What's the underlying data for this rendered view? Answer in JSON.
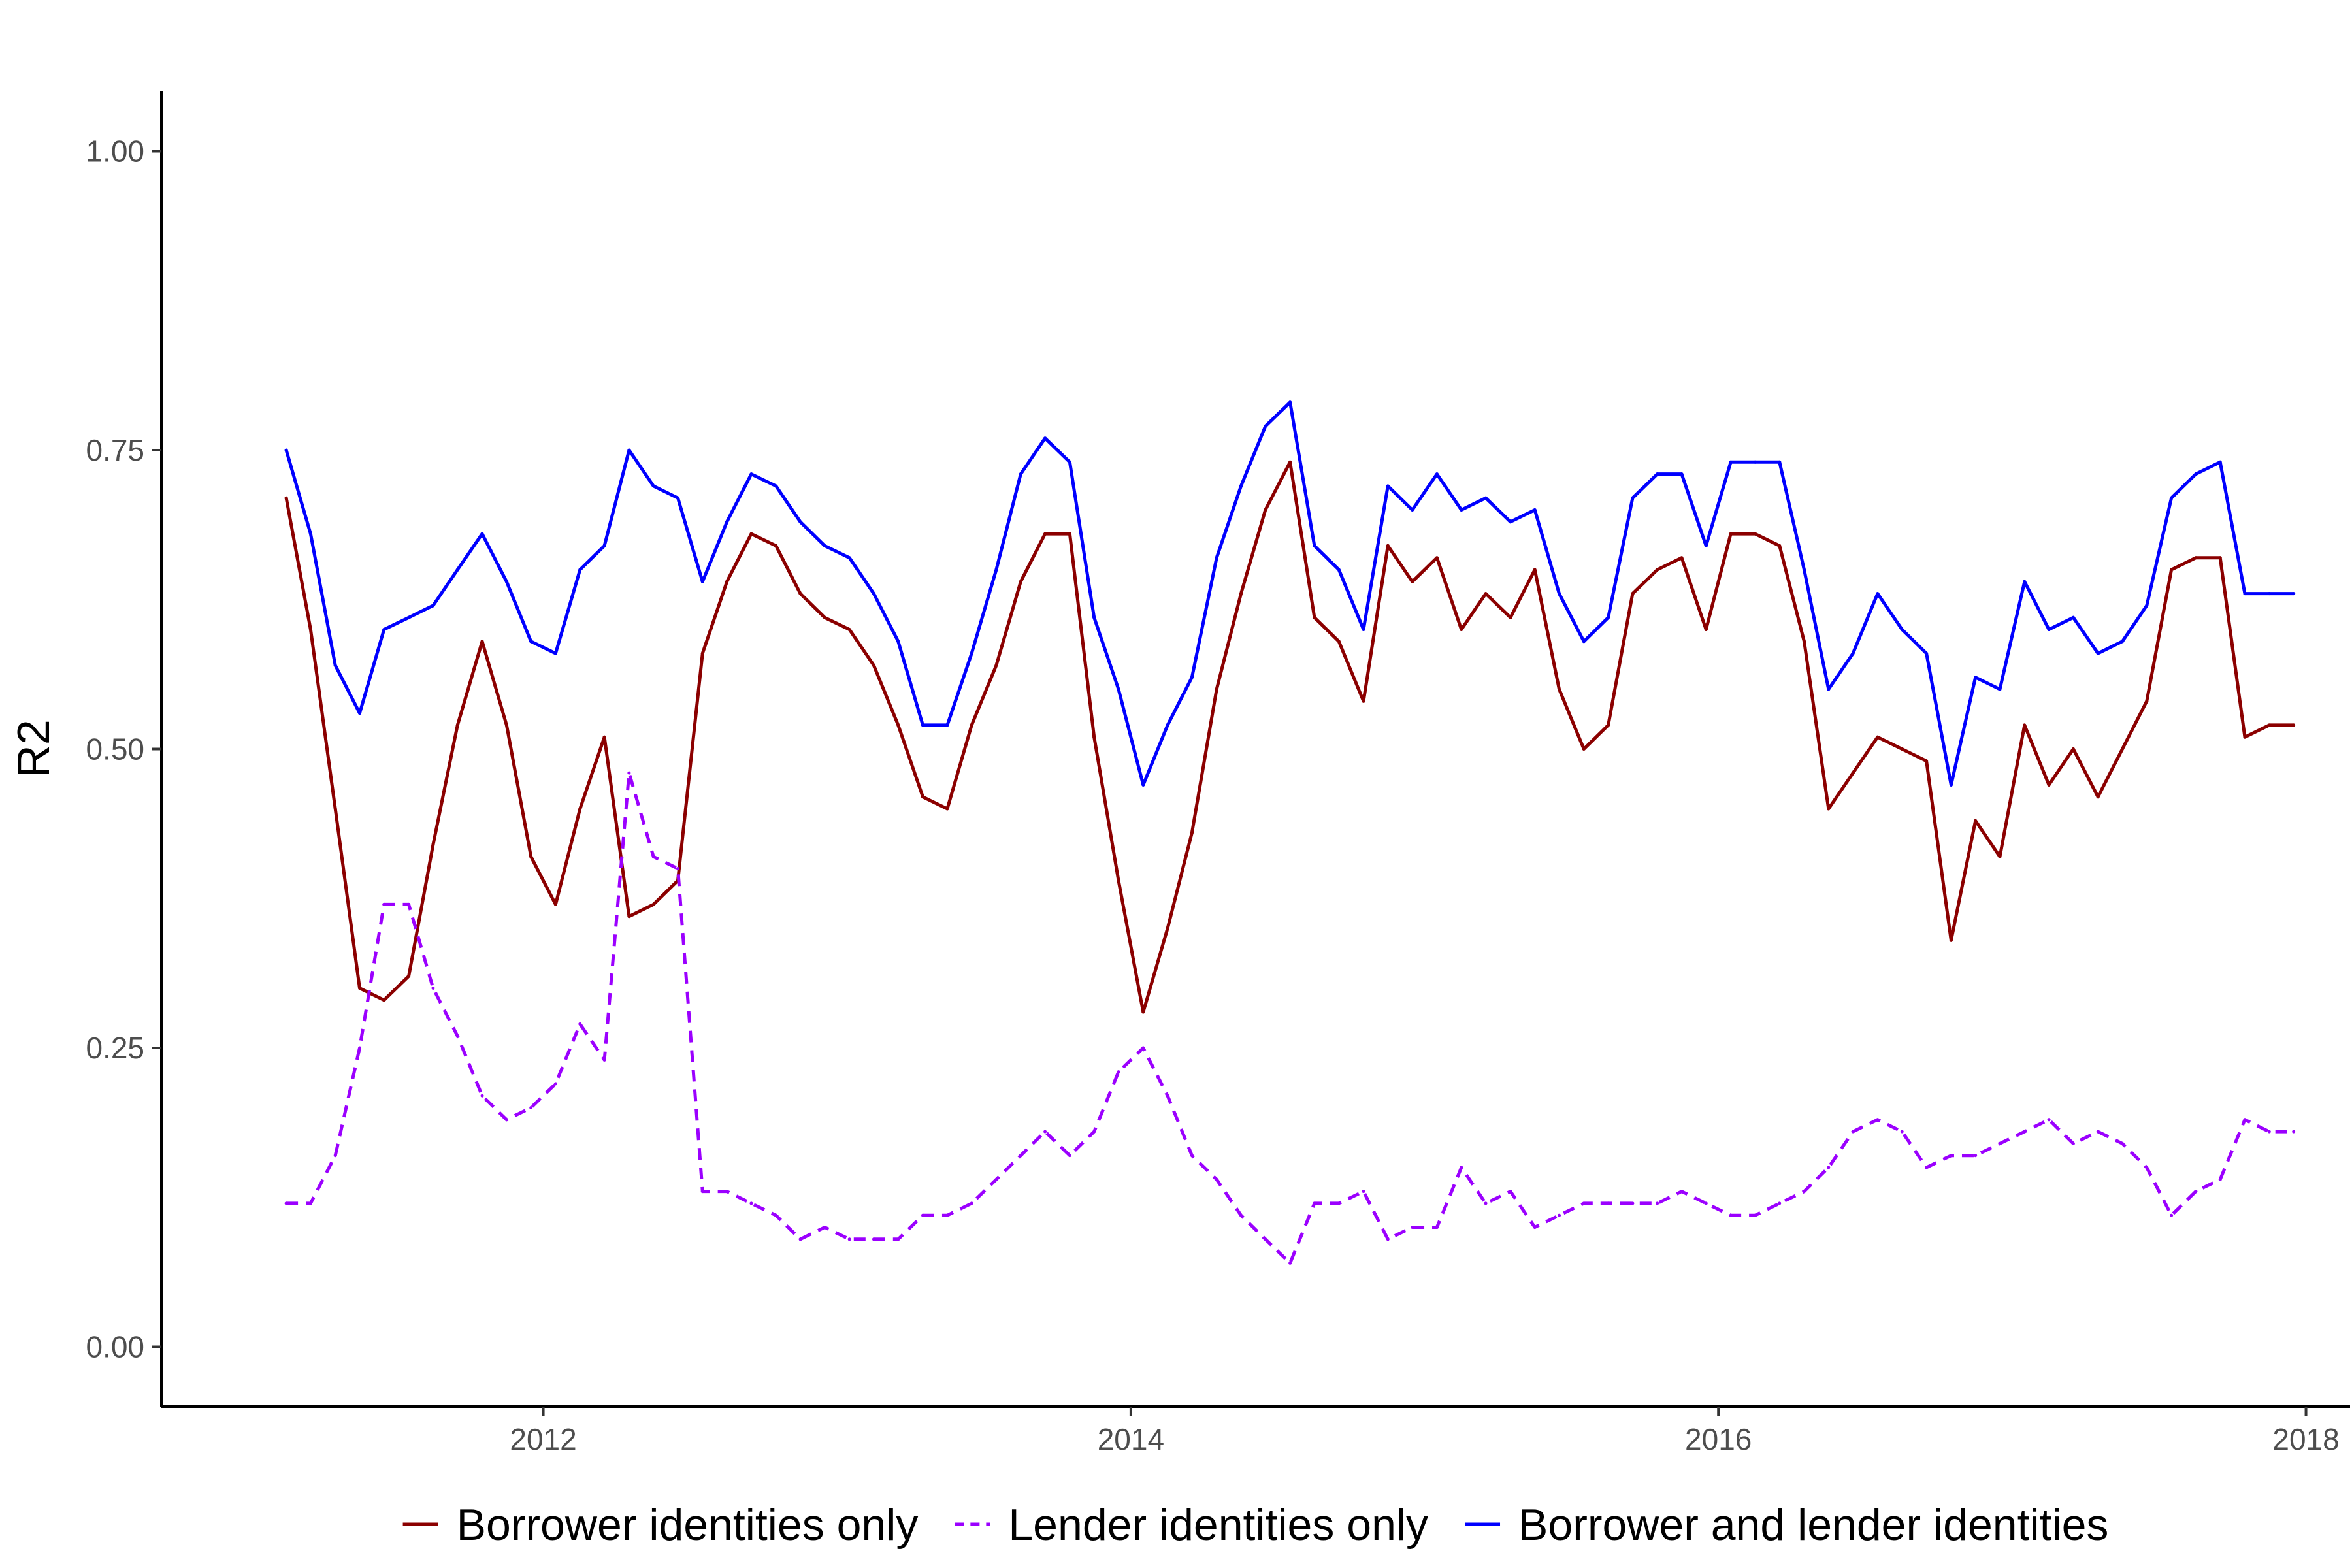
{
  "chart_data": {
    "type": "line",
    "title": "",
    "xlabel": "",
    "ylabel": "R2",
    "xlim": [
      2010.7,
      2018.15
    ],
    "ylim": [
      -0.05,
      1.05
    ],
    "x_ticks": [
      2012,
      2014,
      2016,
      2018
    ],
    "x_tick_labels": [
      "2012",
      "2014",
      "2016",
      "2018"
    ],
    "y_ticks": [
      0,
      0.25,
      0.5,
      0.75,
      1.0
    ],
    "y_tick_labels": [
      "0.00",
      "0.25",
      "0.50",
      "0.75",
      "1.00"
    ],
    "grid": false,
    "legend_position": "bottom",
    "x": [
      2011.125,
      2011.208,
      2011.292,
      2011.375,
      2011.458,
      2011.542,
      2011.625,
      2011.708,
      2011.792,
      2011.875,
      2011.958,
      2012.042,
      2012.125,
      2012.208,
      2012.292,
      2012.375,
      2012.458,
      2012.542,
      2012.625,
      2012.708,
      2012.792,
      2012.875,
      2012.958,
      2013.042,
      2013.125,
      2013.208,
      2013.292,
      2013.375,
      2013.458,
      2013.542,
      2013.625,
      2013.708,
      2013.792,
      2013.875,
      2013.958,
      2014.042,
      2014.125,
      2014.208,
      2014.292,
      2014.375,
      2014.458,
      2014.542,
      2014.625,
      2014.708,
      2014.792,
      2014.875,
      2014.958,
      2015.042,
      2015.125,
      2015.208,
      2015.292,
      2015.375,
      2015.458,
      2015.542,
      2015.625,
      2015.708,
      2015.792,
      2015.875,
      2015.958,
      2016.042,
      2016.125,
      2016.208,
      2016.292,
      2016.375,
      2016.458,
      2016.542,
      2016.625,
      2016.708,
      2016.792,
      2016.875,
      2016.958,
      2017.042,
      2017.125,
      2017.208,
      2017.292,
      2017.375,
      2017.458,
      2017.542,
      2017.625,
      2017.708,
      2017.792,
      2017.875,
      2017.958
    ],
    "series": [
      {
        "name": "Borrower identities only",
        "color": "#8b0000",
        "dash": "solid",
        "values": [
          0.71,
          0.6,
          0.45,
          0.3,
          0.29,
          0.31,
          0.42,
          0.52,
          0.59,
          0.52,
          0.41,
          0.37,
          0.45,
          0.51,
          0.36,
          0.37,
          0.39,
          0.58,
          0.64,
          0.68,
          0.67,
          0.63,
          0.61,
          0.6,
          0.57,
          0.52,
          0.46,
          0.45,
          0.52,
          0.57,
          0.64,
          0.68,
          0.68,
          0.51,
          0.39,
          0.28,
          0.35,
          0.43,
          0.55,
          0.63,
          0.7,
          0.74,
          0.61,
          0.59,
          0.54,
          0.67,
          0.64,
          0.66,
          0.6,
          0.63,
          0.61,
          0.65,
          0.55,
          0.5,
          0.52,
          0.63,
          0.65,
          0.66,
          0.6,
          0.68,
          0.68,
          0.67,
          0.59,
          0.45,
          0.48,
          0.51,
          0.5,
          0.49,
          0.34,
          0.44,
          0.41,
          0.52,
          0.47,
          0.5,
          0.46,
          0.5,
          0.54,
          0.65,
          0.66,
          0.66,
          0.51,
          0.52,
          0.52
        ]
      },
      {
        "name": "Lender identities only",
        "color": "#9b00ff",
        "dash": "dashed",
        "values": [
          0.12,
          0.12,
          0.16,
          0.25,
          0.37,
          0.37,
          0.3,
          0.26,
          0.21,
          0.19,
          0.2,
          0.22,
          0.27,
          0.24,
          0.48,
          0.41,
          0.4,
          0.13,
          0.13,
          0.12,
          0.11,
          0.09,
          0.1,
          0.09,
          0.09,
          0.09,
          0.11,
          0.11,
          0.12,
          0.14,
          0.16,
          0.18,
          0.16,
          0.18,
          0.23,
          0.25,
          0.21,
          0.16,
          0.14,
          0.11,
          0.09,
          0.07,
          0.12,
          0.12,
          0.13,
          0.09,
          0.1,
          0.1,
          0.15,
          0.12,
          0.13,
          0.1,
          0.11,
          0.12,
          0.12,
          0.12,
          0.12,
          0.13,
          0.12,
          0.11,
          0.11,
          0.12,
          0.13,
          0.15,
          0.18,
          0.19,
          0.18,
          0.15,
          0.16,
          0.16,
          0.17,
          0.18,
          0.19,
          0.17,
          0.18,
          0.17,
          0.15,
          0.11,
          0.13,
          0.14,
          0.19,
          0.18,
          0.18
        ]
      },
      {
        "name": "Borrower and lender identities",
        "color": "#0000ff",
        "dash": "solid",
        "values": [
          0.75,
          0.68,
          0.57,
          0.53,
          0.6,
          0.61,
          0.62,
          0.65,
          0.68,
          0.64,
          0.59,
          0.58,
          0.65,
          0.67,
          0.75,
          0.72,
          0.71,
          0.64,
          0.69,
          0.73,
          0.72,
          0.69,
          0.67,
          0.66,
          0.63,
          0.59,
          0.52,
          0.52,
          0.58,
          0.65,
          0.73,
          0.76,
          0.74,
          0.61,
          0.55,
          0.47,
          0.52,
          0.56,
          0.66,
          0.72,
          0.77,
          0.79,
          0.67,
          0.65,
          0.6,
          0.72,
          0.7,
          0.73,
          0.7,
          0.71,
          0.69,
          0.7,
          0.63,
          0.59,
          0.61,
          0.71,
          0.73,
          0.73,
          0.67,
          0.74,
          0.74,
          0.74,
          0.65,
          0.55,
          0.58,
          0.63,
          0.6,
          0.58,
          0.47,
          0.56,
          0.55,
          0.64,
          0.6,
          0.61,
          0.58,
          0.59,
          0.62,
          0.71,
          0.73,
          0.74,
          0.63,
          0.63,
          0.63
        ]
      }
    ]
  }
}
